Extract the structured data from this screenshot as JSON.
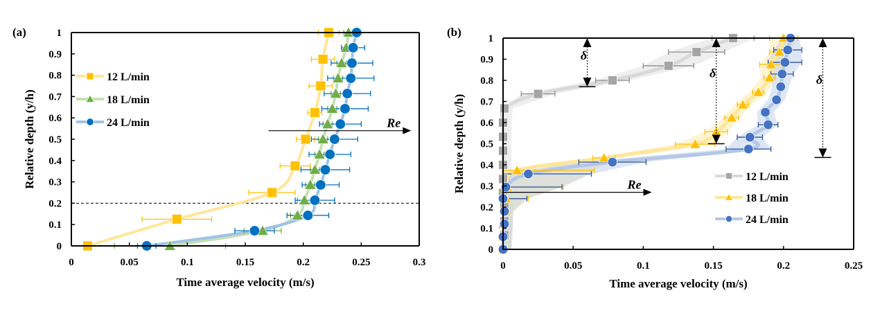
{
  "chart_data": [
    {
      "panel": "(a)",
      "type": "scatter",
      "xlabel": "Time average velocity (m/s)",
      "ylabel": "Relative depth (y/h)",
      "xlim": [
        0,
        0.3
      ],
      "ylim": [
        0,
        1
      ],
      "xticks": [
        0,
        0.05,
        0.1,
        0.15,
        0.2,
        0.25,
        0.3
      ],
      "xtick_labels": [
        "0",
        "0.05",
        "0.1",
        "0.15",
        "0.2",
        "0.25",
        "0.3"
      ],
      "yticks": [
        0,
        0.1,
        0.2,
        0.3,
        0.4,
        0.5,
        0.6,
        0.7,
        0.8,
        0.9,
        1
      ],
      "ytick_labels": [
        "0",
        "0.1",
        "0.2",
        "0.3",
        "0.4",
        "0.5",
        "0.6",
        "0.7",
        "0.8",
        "0.9",
        "1"
      ],
      "grid": false,
      "legend_position": "top-left",
      "annotations": {
        "re_label": "Re",
        "re_arrow": {
          "y": 0.54,
          "x_start": 0.17,
          "x_end": 0.293
        },
        "dashed_line_y": 0.2
      },
      "series": [
        {
          "name": "12 L/min",
          "marker": "square",
          "color": "#FFC000",
          "line_color": "#FFE699",
          "y": [
            0,
            0.125,
            0.25,
            0.375,
            0.5,
            0.625,
            0.75,
            0.875,
            1
          ],
          "x": [
            0.014,
            0.091,
            0.173,
            0.193,
            0.202,
            0.21,
            0.215,
            0.217,
            0.222
          ],
          "err": [
            0.0,
            0.03,
            0.02,
            0.013,
            0.008,
            0.006,
            0.01,
            0.01,
            0.009
          ]
        },
        {
          "name": "18 L/min",
          "marker": "triangle",
          "color": "#70AD47",
          "line_color": "#C5E0B4",
          "y": [
            0,
            0.071,
            0.143,
            0.214,
            0.286,
            0.357,
            0.429,
            0.5,
            0.571,
            0.643,
            0.714,
            0.786,
            0.857,
            0.929,
            1
          ],
          "x": [
            0.085,
            0.165,
            0.195,
            0.201,
            0.206,
            0.21,
            0.214,
            0.217,
            0.221,
            0.225,
            0.228,
            0.23,
            0.233,
            0.237,
            0.239
          ],
          "err": [
            0.048,
            0.016,
            0.006,
            0.006,
            0.004,
            0.004,
            0.004,
            0.004,
            0.004,
            0.004,
            0.004,
            0.004,
            0.004,
            0.004,
            0.004
          ]
        },
        {
          "name": "24 L/min",
          "marker": "circle",
          "color": "#0070C0",
          "line_color": "#9DC3E6",
          "y": [
            0,
            0.071,
            0.143,
            0.214,
            0.286,
            0.357,
            0.429,
            0.5,
            0.571,
            0.643,
            0.714,
            0.786,
            0.857,
            0.929,
            1
          ],
          "x": [
            0.065,
            0.158,
            0.204,
            0.21,
            0.215,
            0.219,
            0.223,
            0.227,
            0.232,
            0.236,
            0.238,
            0.241,
            0.242,
            0.243,
            0.246
          ],
          "err": [
            0.008,
            0.017,
            0.018,
            0.017,
            0.016,
            0.021,
            0.018,
            0.02,
            0.018,
            0.02,
            0.02,
            0.02,
            0.018,
            0.01,
            0.004
          ]
        }
      ]
    },
    {
      "panel": "(b)",
      "type": "scatter",
      "xlabel": "Time average velocity (m/s)",
      "ylabel": "Relative depth (y/h)",
      "xlim": [
        0,
        0.25
      ],
      "ylim": [
        0,
        1
      ],
      "xticks": [
        0,
        0.05,
        0.1,
        0.15,
        0.2,
        0.25
      ],
      "xtick_labels": [
        "0",
        "0.05",
        "0.1",
        "0.15",
        "0.2",
        "0.25"
      ],
      "yticks": [
        0,
        0.1,
        0.2,
        0.3,
        0.4,
        0.5,
        0.6,
        0.7,
        0.8,
        0.9,
        1
      ],
      "ytick_labels": [
        "0",
        "0.1",
        "0.2",
        "0.3",
        "0.4",
        "0.5",
        "0.6",
        "0.7",
        "0.8",
        "0.9",
        "1"
      ],
      "grid": false,
      "legend_position": "bottom-right",
      "annotations": {
        "re_label": "Re",
        "re_arrow": {
          "y": 0.27,
          "x_start": 0.0,
          "x_end": 0.106
        },
        "delta_label": "δ",
        "delta_arrows": [
          {
            "x": 0.06,
            "y_top": 1.0,
            "y_bottom": 0.77
          },
          {
            "x": 0.152,
            "y_top": 1.0,
            "y_bottom": 0.5
          },
          {
            "x": 0.228,
            "y_top": 1.0,
            "y_bottom": 0.435
          }
        ]
      },
      "series": [
        {
          "name": "12 L/min",
          "marker": "square",
          "color": "#A5A5A5",
          "line_color": "#D9D9D9",
          "y": [
            0,
            0.067,
            0.133,
            0.2,
            0.267,
            0.333,
            0.4,
            0.467,
            0.533,
            0.6,
            0.667,
            0.736,
            0.8,
            0.869,
            0.934,
            1
          ],
          "x": [
            0,
            0.001,
            0.001,
            0.001,
            0.0,
            0.0,
            0.0,
            0.0,
            0.0,
            0.0,
            0.001,
            0.025,
            0.078,
            0.118,
            0.138,
            0.164
          ],
          "err": [
            0,
            0,
            0,
            0,
            0,
            0,
            0,
            0,
            0,
            0,
            0,
            0.012,
            0.012,
            0.018,
            0.02,
            0.015
          ]
        },
        {
          "name": "18 L/min",
          "marker": "triangle",
          "color": "#FFC000",
          "line_color": "#FFE699",
          "y": [
            0,
            0.06,
            0.12,
            0.18,
            0.24,
            0.295,
            0.374,
            0.433,
            0.498,
            0.557,
            0.623,
            0.685,
            0.744,
            0.813,
            0.875,
            0.934,
            1
          ],
          "x": [
            0,
            0.0,
            0.0,
            0.002,
            0.002,
            0.003,
            0.01,
            0.072,
            0.137,
            0.152,
            0.163,
            0.171,
            0.182,
            0.19,
            0.191,
            0.197,
            0.2
          ],
          "err": [
            0,
            0,
            0,
            0.002,
            0.016,
            0.04,
            0.055,
            0.008,
            0.014,
            0.008,
            0.005,
            0.004,
            0.004,
            0.004,
            0.008,
            0.007,
            0.01
          ]
        },
        {
          "name": "24 L/min",
          "marker": "circle",
          "color": "#4472C4",
          "line_color": "#B4C7E7",
          "y": [
            0,
            0.06,
            0.12,
            0.18,
            0.24,
            0.295,
            0.357,
            0.413,
            0.475,
            0.531,
            0.59,
            0.649,
            0.708,
            0.77,
            0.83,
            0.885,
            0.944,
            1
          ],
          "x": [
            0,
            0.0,
            0.001,
            0.001,
            0.0,
            0.002,
            0.018,
            0.078,
            0.175,
            0.176,
            0.189,
            0.187,
            0.195,
            0.198,
            0.199,
            0.201,
            0.203,
            0.205
          ],
          "err": [
            0,
            0,
            0,
            0.002,
            0.017,
            0.04,
            0.045,
            0.024,
            0.016,
            0.009,
            0.007,
            0.003,
            0.0,
            0.0,
            0.008,
            0.012,
            0.01,
            0.0
          ]
        }
      ]
    }
  ]
}
